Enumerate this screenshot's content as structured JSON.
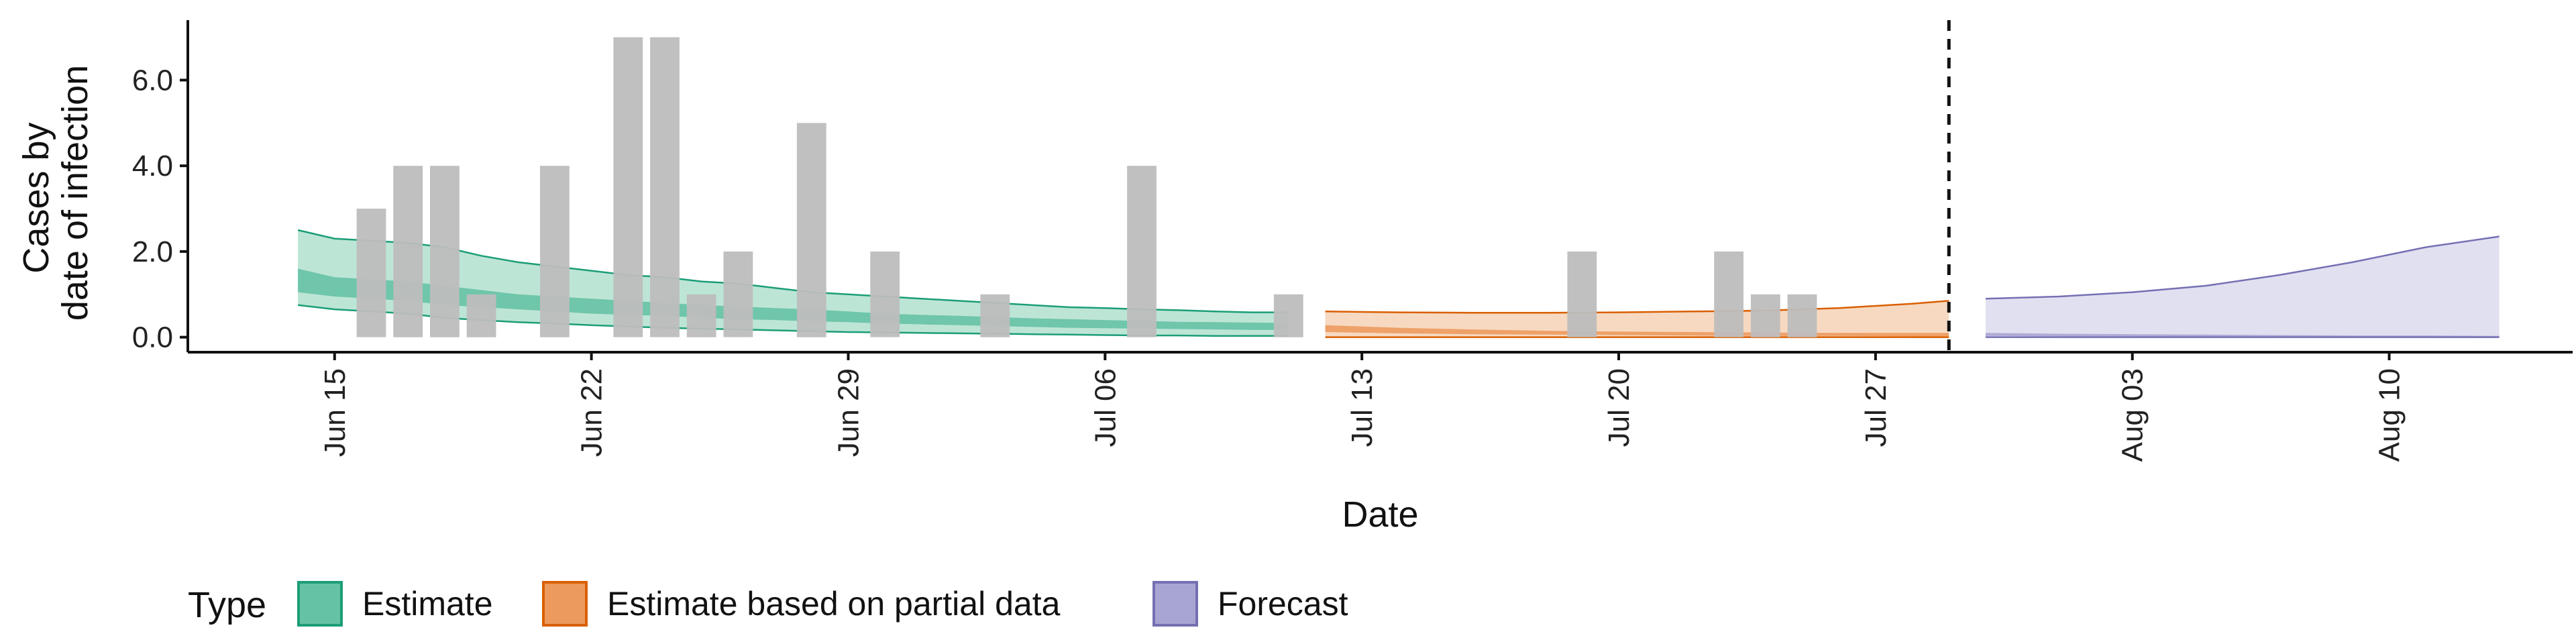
{
  "chart_data": {
    "type": "area",
    "xlabel": "Date",
    "ylabel_lines": [
      "Cases by",
      "date of infection"
    ],
    "x_range": [
      "2020-06-11",
      "2020-08-15"
    ],
    "ylim": [
      -0.35,
      7.4
    ],
    "y_ticks": [
      {
        "value": 0,
        "label": "0.0"
      },
      {
        "value": 2,
        "label": "2.0"
      },
      {
        "value": 4,
        "label": "4.0"
      },
      {
        "value": 6,
        "label": "6.0"
      }
    ],
    "x_ticks": [
      {
        "date": "2020-06-15",
        "label": "Jun 15"
      },
      {
        "date": "2020-06-22",
        "label": "Jun 22"
      },
      {
        "date": "2020-06-29",
        "label": "Jun 29"
      },
      {
        "date": "2020-07-06",
        "label": "Jul 06"
      },
      {
        "date": "2020-07-13",
        "label": "Jul 13"
      },
      {
        "date": "2020-07-20",
        "label": "Jul 20"
      },
      {
        "date": "2020-07-27",
        "label": "Jul 27"
      },
      {
        "date": "2020-08-03",
        "label": "Aug 03"
      },
      {
        "date": "2020-08-10",
        "label": "Aug 10"
      }
    ],
    "vline_date": "2020-07-29",
    "grid": false,
    "legend": {
      "position": "bottom",
      "title": "Type",
      "entries": [
        {
          "label": "Estimate",
          "fill": "#66c2a5",
          "stroke": "#1b9e77"
        },
        {
          "label": "Estimate based on partial data",
          "fill": "#ec9a5e",
          "stroke": "#d95f02"
        },
        {
          "label": "Forecast",
          "fill": "#a9a5d3",
          "stroke": "#7570b3"
        }
      ]
    },
    "bar_color": "#bdbdbd",
    "observed_cases": [
      {
        "date": "2020-06-16",
        "value": 3
      },
      {
        "date": "2020-06-17",
        "value": 4
      },
      {
        "date": "2020-06-18",
        "value": 4
      },
      {
        "date": "2020-06-19",
        "value": 1
      },
      {
        "date": "2020-06-21",
        "value": 4
      },
      {
        "date": "2020-06-22",
        "value": 0
      },
      {
        "date": "2020-06-23",
        "value": 7
      },
      {
        "date": "2020-06-24",
        "value": 7
      },
      {
        "date": "2020-06-25",
        "value": 1
      },
      {
        "date": "2020-06-26",
        "value": 2
      },
      {
        "date": "2020-06-28",
        "value": 5
      },
      {
        "date": "2020-06-30",
        "value": 2
      },
      {
        "date": "2020-07-03",
        "value": 1
      },
      {
        "date": "2020-07-07",
        "value": 4
      },
      {
        "date": "2020-07-11",
        "value": 1
      },
      {
        "date": "2020-07-19",
        "value": 2
      },
      {
        "date": "2020-07-23",
        "value": 2
      },
      {
        "date": "2020-07-24",
        "value": 1
      },
      {
        "date": "2020-07-25",
        "value": 1
      }
    ],
    "series": [
      {
        "type_label": "Estimate",
        "fill_outer": "#b2e0cf",
        "fill_inner": "#66c2a5",
        "stroke": "#1b9e77",
        "dates": [
          "2020-06-14",
          "2020-06-15",
          "2020-06-16",
          "2020-06-17",
          "2020-06-18",
          "2020-06-19",
          "2020-06-20",
          "2020-06-21",
          "2020-06-22",
          "2020-06-23",
          "2020-06-24",
          "2020-06-25",
          "2020-06-26",
          "2020-06-27",
          "2020-06-28",
          "2020-06-29",
          "2020-06-30",
          "2020-07-01",
          "2020-07-02",
          "2020-07-03",
          "2020-07-04",
          "2020-07-05",
          "2020-07-06",
          "2020-07-07",
          "2020-07-08",
          "2020-07-09",
          "2020-07-10",
          "2020-07-11"
        ],
        "upper90": [
          2.5,
          2.3,
          2.25,
          2.2,
          2.1,
          1.9,
          1.75,
          1.65,
          1.55,
          1.45,
          1.4,
          1.3,
          1.25,
          1.15,
          1.05,
          1.0,
          0.95,
          0.9,
          0.85,
          0.8,
          0.75,
          0.7,
          0.68,
          0.65,
          0.63,
          0.6,
          0.58,
          0.58
        ],
        "upper50": [
          1.6,
          1.4,
          1.35,
          1.3,
          1.2,
          1.1,
          1.0,
          0.95,
          0.9,
          0.85,
          0.8,
          0.75,
          0.72,
          0.68,
          0.65,
          0.6,
          0.55,
          0.52,
          0.5,
          0.47,
          0.44,
          0.42,
          0.4,
          0.38,
          0.36,
          0.35,
          0.34,
          0.33
        ],
        "lower50": [
          1.05,
          0.95,
          0.9,
          0.85,
          0.75,
          0.7,
          0.65,
          0.6,
          0.55,
          0.52,
          0.5,
          0.45,
          0.42,
          0.4,
          0.37,
          0.35,
          0.32,
          0.3,
          0.28,
          0.26,
          0.24,
          0.22,
          0.21,
          0.2,
          0.19,
          0.18,
          0.17,
          0.17
        ],
        "lower90": [
          0.75,
          0.65,
          0.6,
          0.55,
          0.45,
          0.4,
          0.35,
          0.32,
          0.28,
          0.25,
          0.22,
          0.2,
          0.18,
          0.16,
          0.14,
          0.12,
          0.11,
          0.1,
          0.09,
          0.08,
          0.07,
          0.06,
          0.05,
          0.04,
          0.04,
          0.03,
          0.03,
          0.03
        ]
      },
      {
        "type_label": "Estimate based on partial data",
        "fill_outer": "#f6d2b6",
        "fill_inner": "#ec9a5e",
        "stroke": "#d95f02",
        "dates": [
          "2020-07-12",
          "2020-07-14",
          "2020-07-16",
          "2020-07-18",
          "2020-07-20",
          "2020-07-22",
          "2020-07-24",
          "2020-07-26",
          "2020-07-28",
          "2020-07-29"
        ],
        "upper90": [
          0.6,
          0.58,
          0.57,
          0.57,
          0.58,
          0.6,
          0.62,
          0.68,
          0.78,
          0.85
        ],
        "upper50": [
          0.28,
          0.22,
          0.18,
          0.15,
          0.13,
          0.12,
          0.11,
          0.1,
          0.1,
          0.1
        ],
        "lower50": [
          0.12,
          0.09,
          0.07,
          0.06,
          0.05,
          0.04,
          0.03,
          0.03,
          0.02,
          0.02
        ],
        "lower90": [
          0.0,
          0.0,
          0.0,
          0.0,
          0.0,
          0.0,
          0.0,
          0.0,
          0.0,
          0.0
        ]
      },
      {
        "type_label": "Forecast",
        "fill_outer": "#dcdaee",
        "fill_inner": "#a9a5d3",
        "stroke": "#7570b3",
        "dates": [
          "2020-07-30",
          "2020-08-01",
          "2020-08-03",
          "2020-08-05",
          "2020-08-07",
          "2020-08-09",
          "2020-08-11",
          "2020-08-13"
        ],
        "upper90": [
          0.9,
          0.95,
          1.05,
          1.2,
          1.45,
          1.75,
          2.1,
          2.35
        ],
        "upper50": [
          0.1,
          0.08,
          0.07,
          0.06,
          0.05,
          0.04,
          0.04,
          0.03
        ],
        "lower50": [
          0.03,
          0.02,
          0.02,
          0.01,
          0.01,
          0.01,
          0.0,
          0.0
        ],
        "lower90": [
          0.0,
          0.0,
          0.0,
          0.0,
          0.0,
          0.0,
          0.0,
          0.0
        ]
      }
    ]
  }
}
